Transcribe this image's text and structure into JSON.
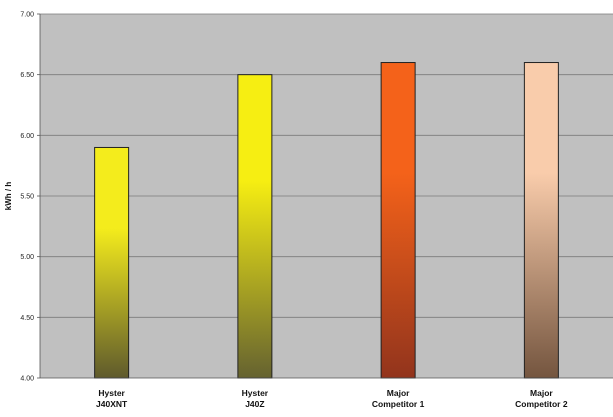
{
  "chart_data": {
    "type": "bar",
    "categories": [
      [
        "Hyster",
        "J40XNT"
      ],
      [
        "Hyster",
        "J40Z"
      ],
      [
        "Major",
        "Competitor 1"
      ],
      [
        "Major",
        "Competitor 2"
      ]
    ],
    "values": [
      5.9,
      6.5,
      6.6,
      6.6
    ],
    "title": "",
    "xlabel": "",
    "ylabel": "kWh / h",
    "ylim": [
      4.0,
      7.0
    ],
    "yticks": [
      "4.00",
      "4.50",
      "5.00",
      "5.50",
      "6.00",
      "6.50",
      "7.00"
    ],
    "grid": true,
    "legend": "none",
    "colors": {
      "plot_background": "#c0c0c0",
      "gridline": "#7a7a7a",
      "bar_gradients": [
        [
          "#f4ec1c",
          "#5f5a2c"
        ],
        [
          "#f6ee12",
          "#656230"
        ],
        [
          "#f4621a",
          "#92341c"
        ],
        [
          "#f9ccab",
          "#74553f"
        ]
      ]
    }
  }
}
